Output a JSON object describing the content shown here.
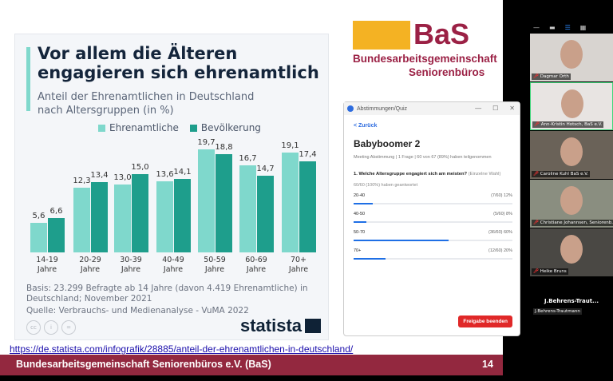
{
  "slide": {
    "title": "Vor allem die Älteren engagieren sich ehrenamtlich",
    "subtitle_line1": "Anteil der Ehrenamtlichen in Deutschland",
    "subtitle_line2": "nach Altersgruppen (in %)",
    "footnote": "Basis: 23.299 Befragte ab 14 Jahre (davon 4.419 Ehrenamtliche) in Deutschland; November 2021",
    "source": "Quelle: Verbrauchs- und Medienanalyse - VuMA 2022",
    "brand": "statista",
    "url": "https://de.statista.com/infografik/28885/anteil-der-ehrenamtlichen-in-deutschland/",
    "footer": "Bundesarbeitsgemeinschaft Seniorenbüros e.V. (BaS)",
    "page": "14",
    "logo": {
      "name": "BaS",
      "line1": "Bundesarbeitsgemeinschaft",
      "line2": "Seniorenbüros"
    }
  },
  "chart_data": {
    "type": "bar",
    "categories": [
      "14-19 Jahre",
      "20-29 Jahre",
      "30-39 Jahre",
      "40-49 Jahre",
      "50-59 Jahre",
      "60-69 Jahre",
      "70+ Jahre"
    ],
    "series": [
      {
        "name": "Ehrenamtliche",
        "color": "#7fd8cc",
        "values": [
          5.6,
          12.3,
          13.0,
          13.6,
          19.7,
          16.7,
          19.1
        ]
      },
      {
        "name": "Bevölkerung",
        "color": "#1e9e8c",
        "values": [
          6.6,
          13.4,
          15.0,
          14.1,
          18.8,
          14.7,
          17.4
        ]
      }
    ],
    "value_labels": [
      [
        "5,6",
        "12,3",
        "13,0",
        "13,6",
        "19,7",
        "16,7",
        "19,1"
      ],
      [
        "6,6",
        "13,4",
        "15,0",
        "14,1",
        "18,8",
        "14,7",
        "17,4"
      ]
    ],
    "tick_labels": [
      [
        "14-19",
        "Jahre"
      ],
      [
        "20-29",
        "Jahre"
      ],
      [
        "30-39",
        "Jahre"
      ],
      [
        "40-49",
        "Jahre"
      ],
      [
        "50-59",
        "Jahre"
      ],
      [
        "60-69",
        "Jahre"
      ],
      [
        "70+",
        "Jahre"
      ]
    ],
    "legend": "top"
  },
  "poll": {
    "window_title": "Abstimmungen/Quiz",
    "back": "< Zurück",
    "heading": "Babyboomer 2",
    "meta": "Meeting Abstimmung  |  1 Frage  |  60 von 67 (89%) haben teilgenommen",
    "question": "1. Welche Altersgruppe engagiert sich am meisten?",
    "question_type": "(Einzelne Wahl)",
    "answered": "60/60 (100%) haben geantwortet",
    "options": [
      {
        "label": "20-40",
        "result": "(7/60) 12%",
        "percent": 12
      },
      {
        "label": "40-50",
        "result": "(5/60) 8%",
        "percent": 8
      },
      {
        "label": "50-70",
        "result": "(36/60) 60%",
        "percent": 60
      },
      {
        "label": "70+",
        "result": "(12/60) 20%",
        "percent": 20
      }
    ],
    "end_button": "Freigabe beenden"
  },
  "participants": [
    "Dagmar Orth",
    "Ann-Kristin Hotsch, BaS e.V.",
    "Caroline Kuhl BaS e.V.",
    "Christiane Johannsen, Seniorenb...",
    "Heike  Bruns"
  ],
  "active_speaker": {
    "title": "J.Behrens-Traut...",
    "name": "J.Behrens-Trautmann"
  }
}
